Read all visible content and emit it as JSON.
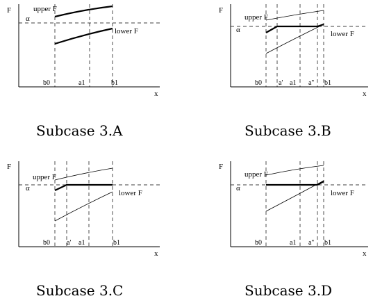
{
  "panels": [
    {
      "caption": "Subcase 3.A",
      "y_axis_label": "F",
      "x_axis_label": "x",
      "alpha_label": "α",
      "upper_label": "upper F",
      "lower_label": "lower F",
      "ticks": [
        "b0",
        "a1",
        "b1"
      ]
    },
    {
      "caption": "Subcase 3.B",
      "y_axis_label": "F",
      "x_axis_label": "x",
      "alpha_label": "α",
      "upper_label": "upper F",
      "lower_label": "lower F",
      "ticks": [
        "b0",
        "a'",
        "a1",
        "a''",
        "b1"
      ]
    },
    {
      "caption": "Subcase 3.C",
      "y_axis_label": "F",
      "x_axis_label": "x",
      "alpha_label": "α",
      "upper_label": "upper F",
      "lower_label": "lower F",
      "ticks": [
        "b0",
        "a'",
        "a1",
        "b1"
      ]
    },
    {
      "caption": "Subcase 3.D",
      "y_axis_label": "F",
      "x_axis_label": "x",
      "alpha_label": "α",
      "upper_label": "upper F",
      "lower_label": "lower F",
      "ticks": [
        "b0",
        "a1",
        "a''",
        "b1"
      ]
    }
  ]
}
